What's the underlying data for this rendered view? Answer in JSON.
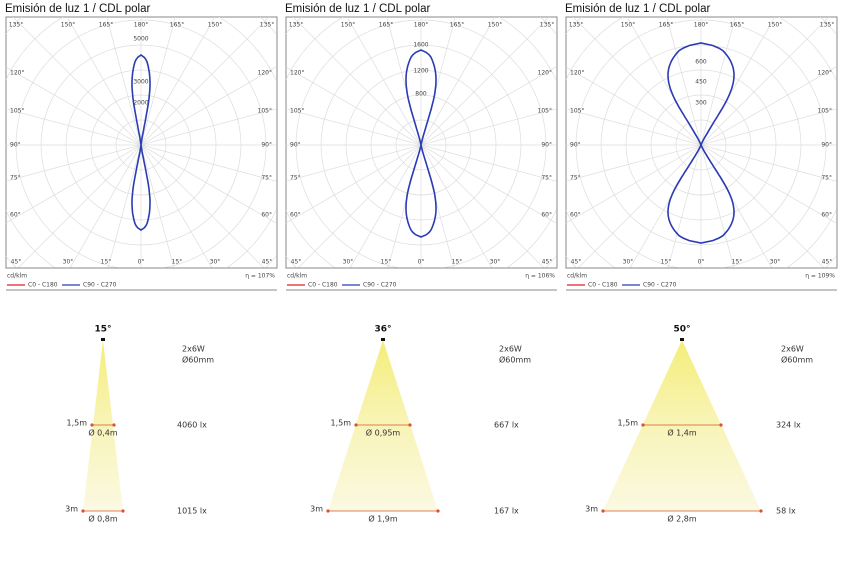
{
  "polar_panels": [
    {
      "title": "Emisión de luz 1 / CDL polar",
      "top_angles": [
        "135°",
        "150°",
        "165°",
        "180°",
        "165°",
        "150°",
        "135°"
      ],
      "left_angles": [
        "120°",
        "105°",
        "90°",
        "75°",
        "60°"
      ],
      "right_angles": [
        "120°",
        "105°",
        "90°",
        "75°",
        "60°"
      ],
      "bottom_angles": [
        "45°",
        "30°",
        "15°",
        "0°",
        "15°",
        "30°",
        "45°"
      ],
      "radial_labels": [
        "5000",
        "3000",
        "2000"
      ],
      "unit": "cd/klm",
      "efficiency": "η = 107%",
      "legend": [
        "C0 - C180",
        "C90 - C270"
      ]
    },
    {
      "title": "Emisión de luz 1 / CDL polar",
      "top_angles": [
        "135°",
        "150°",
        "165°",
        "180°",
        "165°",
        "150°",
        "135°"
      ],
      "left_angles": [
        "120°",
        "105°",
        "90°",
        "75°",
        "60°"
      ],
      "right_angles": [
        "120°",
        "105°",
        "90°",
        "75°",
        "60°"
      ],
      "bottom_angles": [
        "45°",
        "30°",
        "15°",
        "0°",
        "15°",
        "30°",
        "45°"
      ],
      "radial_labels": [
        "1600",
        "1200",
        "800"
      ],
      "unit": "cd/klm",
      "efficiency": "η = 106%",
      "legend": [
        "C0 - C180",
        "C90 - C270"
      ]
    },
    {
      "title": "Emisión de luz 1 / CDL polar",
      "top_angles": [
        "135°",
        "150°",
        "165°",
        "180°",
        "165°",
        "150°",
        "135°"
      ],
      "left_angles": [
        "120°",
        "105°",
        "90°",
        "75°",
        "60°"
      ],
      "right_angles": [
        "120°",
        "105°",
        "90°",
        "75°",
        "60°"
      ],
      "bottom_angles": [
        "45°",
        "30°",
        "15°",
        "0°",
        "15°",
        "30°",
        "45°"
      ],
      "radial_labels": [
        "600",
        "450",
        "300"
      ],
      "unit": "cd/klm",
      "efficiency": "η = 109%",
      "legend": [
        "C0 - C180",
        "C90 - C270"
      ]
    }
  ],
  "beams": [
    {
      "angle": "15°",
      "power": "2x6W",
      "diameter": "Ø60mm",
      "near_distance": "1,5m",
      "near_width": "Ø 0,4m",
      "near_lux": "4060 lx",
      "far_distance": "3m",
      "far_width": "Ø 0,8m",
      "far_lux": "1015 lx"
    },
    {
      "angle": "36°",
      "power": "2x6W",
      "diameter": "Ø60mm",
      "near_distance": "1,5m",
      "near_width": "Ø 0,95m",
      "near_lux": "667 lx",
      "far_distance": "3m",
      "far_width": "Ø 1,9m",
      "far_lux": "167 lx"
    },
    {
      "angle": "50°",
      "power": "2x6W",
      "diameter": "Ø60mm",
      "near_distance": "1,5m",
      "near_width": "Ø 1,4m",
      "near_lux": "324 lx",
      "far_distance": "3m",
      "far_width": "Ø 2,8m",
      "far_lux": "58 lx"
    }
  ]
}
